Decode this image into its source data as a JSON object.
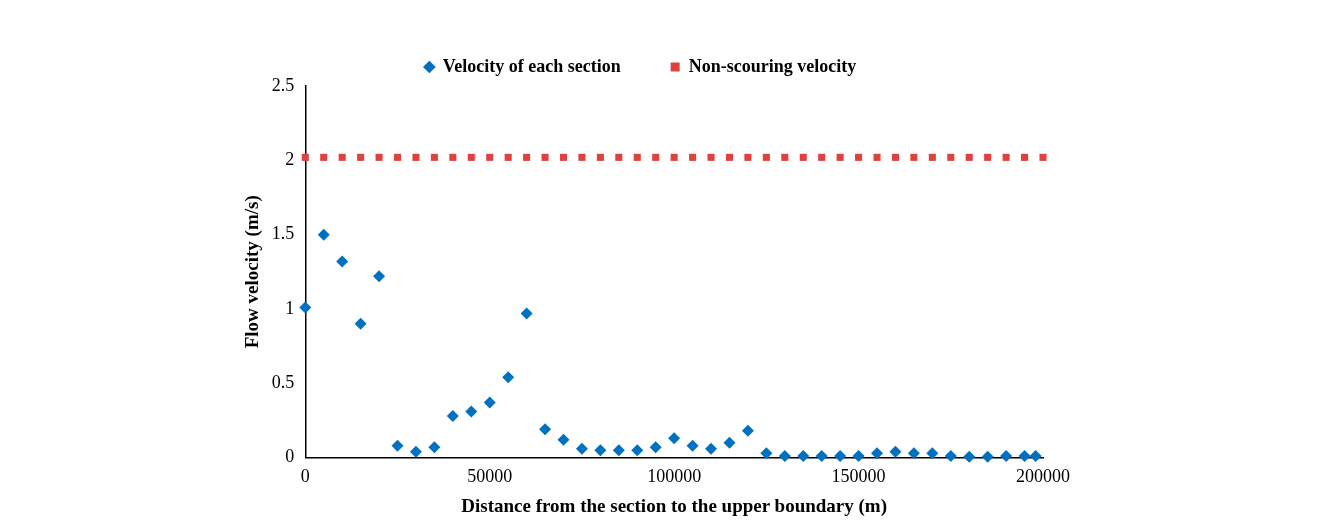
{
  "chart_data": {
    "type": "scatter",
    "xlabel": "Distance from the section to the upper boundary (m)",
    "ylabel": "Flow velocity (m/s)",
    "xlim": [
      0,
      200000
    ],
    "xticks": [
      0,
      50000,
      100000,
      150000,
      200000
    ],
    "ylim": [
      0,
      2.5
    ],
    "yticks": [
      0,
      0.5,
      1,
      1.5,
      2,
      2.5
    ],
    "grid": false,
    "legend": "top",
    "series": [
      {
        "name": "Velocity of each section",
        "color": "#0070c0",
        "marker": "diamond",
        "x": [
          0,
          5000,
          10000,
          15000,
          20000,
          25000,
          30000,
          35000,
          40000,
          45000,
          50000,
          55000,
          60000,
          65000,
          70000,
          75000,
          80000,
          85000,
          90000,
          95000,
          100000,
          105000,
          110000,
          115000,
          120000,
          125000,
          130000,
          135000,
          140000,
          145000,
          150000,
          155000,
          160000,
          165000,
          170000,
          175000,
          180000,
          185000,
          190000,
          195000,
          198000
        ],
        "values": [
          1.01,
          1.5,
          1.32,
          0.9,
          1.22,
          0.08,
          0.04,
          0.07,
          0.28,
          0.31,
          0.37,
          0.54,
          0.97,
          0.19,
          0.12,
          0.06,
          0.05,
          0.05,
          0.05,
          0.07,
          0.13,
          0.08,
          0.06,
          0.1,
          0.18,
          0.03,
          0.01,
          0.01,
          0.01,
          0.01,
          0.01,
          0.03,
          0.04,
          0.03,
          0.03,
          0.01,
          0.005,
          0.005,
          0.01,
          0.01,
          0.01
        ]
      },
      {
        "name": "Non-scouring velocity",
        "color": "#e04040",
        "marker": "square",
        "x": [
          0,
          5000,
          10000,
          15000,
          20000,
          25000,
          30000,
          35000,
          40000,
          45000,
          50000,
          55000,
          60000,
          65000,
          70000,
          75000,
          80000,
          85000,
          90000,
          95000,
          100000,
          105000,
          110000,
          115000,
          120000,
          125000,
          130000,
          135000,
          140000,
          145000,
          150000,
          155000,
          160000,
          165000,
          170000,
          175000,
          180000,
          185000,
          190000,
          195000,
          200000
        ],
        "values": [
          2.02,
          2.02,
          2.02,
          2.02,
          2.02,
          2.02,
          2.02,
          2.02,
          2.02,
          2.02,
          2.02,
          2.02,
          2.02,
          2.02,
          2.02,
          2.02,
          2.02,
          2.02,
          2.02,
          2.02,
          2.02,
          2.02,
          2.02,
          2.02,
          2.02,
          2.02,
          2.02,
          2.02,
          2.02,
          2.02,
          2.02,
          2.02,
          2.02,
          2.02,
          2.02,
          2.02,
          2.02,
          2.02,
          2.02,
          2.02,
          2.02
        ]
      }
    ]
  }
}
